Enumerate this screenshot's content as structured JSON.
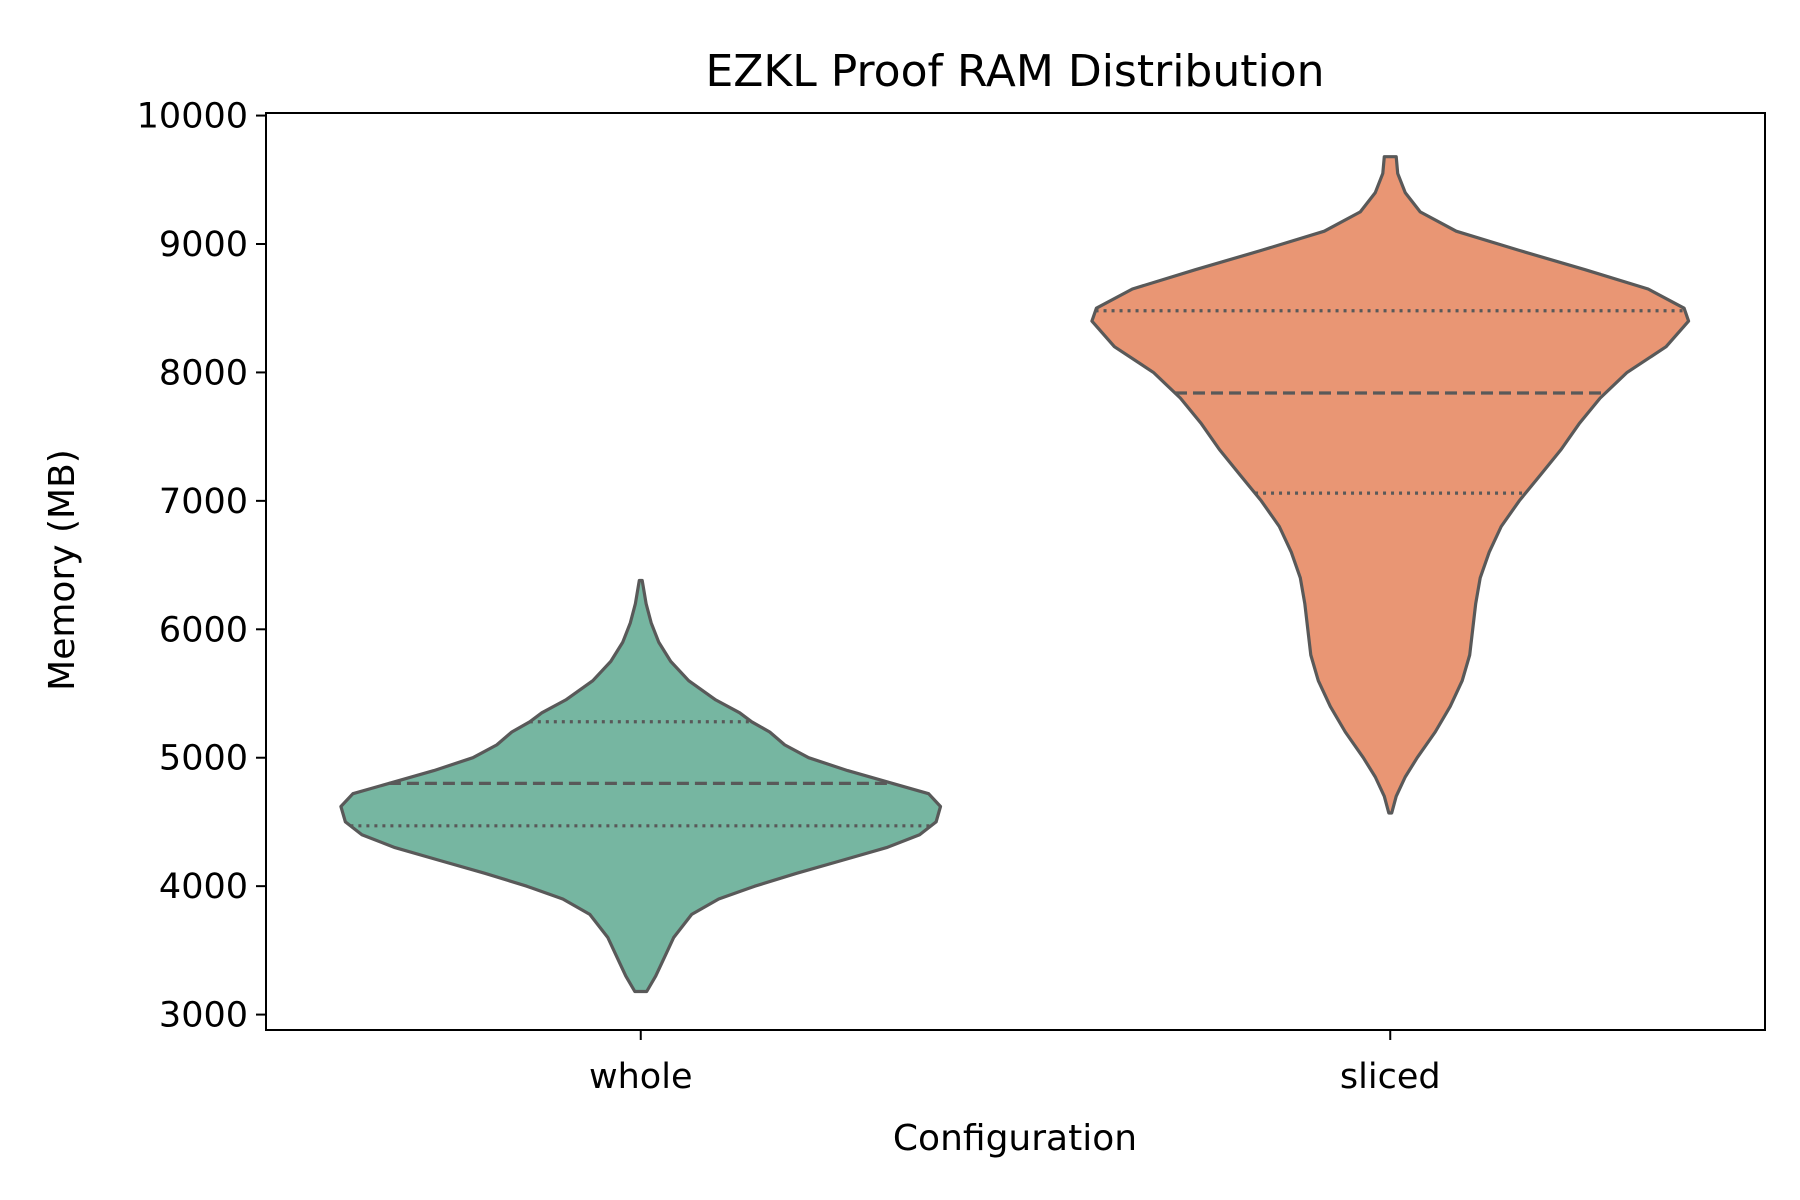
{
  "chart_data": {
    "type": "violin",
    "title": "EZKL Proof RAM Distribution",
    "xlabel": "Configuration",
    "ylabel": "Memory (MB)",
    "ylim": [
      2880,
      10020
    ],
    "yticks": [
      3000,
      4000,
      5000,
      6000,
      7000,
      8000,
      9000,
      10000
    ],
    "categories": [
      "whole",
      "sliced"
    ],
    "colors": {
      "whole": "#76b6a1",
      "sliced": "#e99674",
      "outline": "#595959"
    },
    "series": [
      {
        "name": "whole",
        "min": 3180,
        "max": 6380,
        "q1": 4470,
        "median": 4800,
        "q3": 5280,
        "density": [
          [
            3180,
            0.02
          ],
          [
            3300,
            0.05
          ],
          [
            3450,
            0.08
          ],
          [
            3600,
            0.11
          ],
          [
            3780,
            0.17
          ],
          [
            3900,
            0.26
          ],
          [
            4000,
            0.38
          ],
          [
            4100,
            0.52
          ],
          [
            4200,
            0.67
          ],
          [
            4300,
            0.82
          ],
          [
            4400,
            0.93
          ],
          [
            4500,
            0.985
          ],
          [
            4620,
            1.0
          ],
          [
            4720,
            0.96
          ],
          [
            4800,
            0.84
          ],
          [
            4900,
            0.69
          ],
          [
            5000,
            0.56
          ],
          [
            5100,
            0.48
          ],
          [
            5200,
            0.43
          ],
          [
            5280,
            0.37
          ],
          [
            5350,
            0.33
          ],
          [
            5450,
            0.25
          ],
          [
            5600,
            0.16
          ],
          [
            5750,
            0.1
          ],
          [
            5900,
            0.06
          ],
          [
            6050,
            0.035
          ],
          [
            6200,
            0.018
          ],
          [
            6380,
            0.005
          ]
        ]
      },
      {
        "name": "sliced",
        "min": 4570,
        "max": 9680,
        "q1": 7060,
        "median": 7840,
        "q3": 8480,
        "density": [
          [
            4570,
            0.005
          ],
          [
            4700,
            0.02
          ],
          [
            4850,
            0.05
          ],
          [
            5000,
            0.09
          ],
          [
            5200,
            0.15
          ],
          [
            5400,
            0.2
          ],
          [
            5600,
            0.24
          ],
          [
            5800,
            0.265
          ],
          [
            6000,
            0.275
          ],
          [
            6200,
            0.285
          ],
          [
            6400,
            0.3
          ],
          [
            6600,
            0.33
          ],
          [
            6800,
            0.37
          ],
          [
            7000,
            0.43
          ],
          [
            7200,
            0.5
          ],
          [
            7400,
            0.57
          ],
          [
            7600,
            0.63
          ],
          [
            7800,
            0.7
          ],
          [
            8000,
            0.79
          ],
          [
            8200,
            0.92
          ],
          [
            8400,
            0.995
          ],
          [
            8500,
            0.98
          ],
          [
            8650,
            0.86
          ],
          [
            8800,
            0.65
          ],
          [
            8950,
            0.43
          ],
          [
            9100,
            0.22
          ],
          [
            9250,
            0.1
          ],
          [
            9400,
            0.05
          ],
          [
            9550,
            0.025
          ],
          [
            9680,
            0.02
          ]
        ]
      }
    ]
  }
}
